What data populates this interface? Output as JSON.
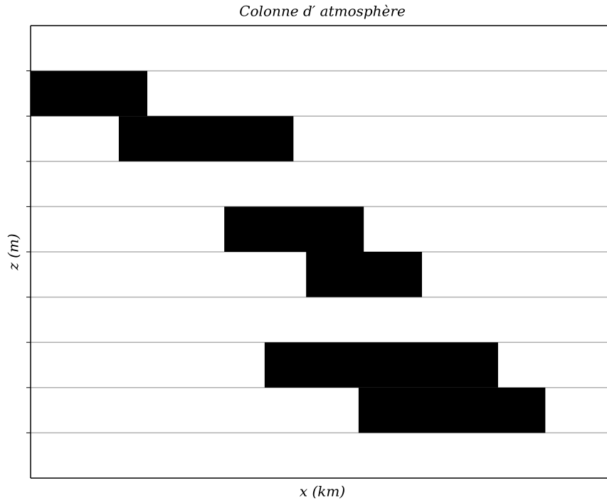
{
  "chart_data": {
    "type": "range",
    "title": "Colonne d′ atmosphère",
    "xlabel": "x (km)",
    "ylabel": "z (m)",
    "xlim": [
      0,
      1
    ],
    "ylim": [
      0,
      10
    ],
    "yticks": [
      1,
      2,
      3,
      4,
      5,
      6,
      7,
      8,
      9
    ],
    "grid": true,
    "color": "#000000",
    "rects": [
      {
        "x": [
          0,
          0.2025
        ],
        "z": [
          8,
          9
        ]
      },
      {
        "x": [
          0.153,
          0.456
        ],
        "z": [
          7,
          8
        ]
      },
      {
        "x": [
          0.336,
          0.578
        ],
        "z": [
          5,
          6
        ]
      },
      {
        "x": [
          0.478,
          0.679
        ],
        "z": [
          4,
          5
        ]
      },
      {
        "x": [
          0.406,
          0.811
        ],
        "z": [
          2,
          3
        ]
      },
      {
        "x": [
          0.569,
          0.893
        ],
        "z": [
          1,
          2
        ]
      }
    ]
  }
}
